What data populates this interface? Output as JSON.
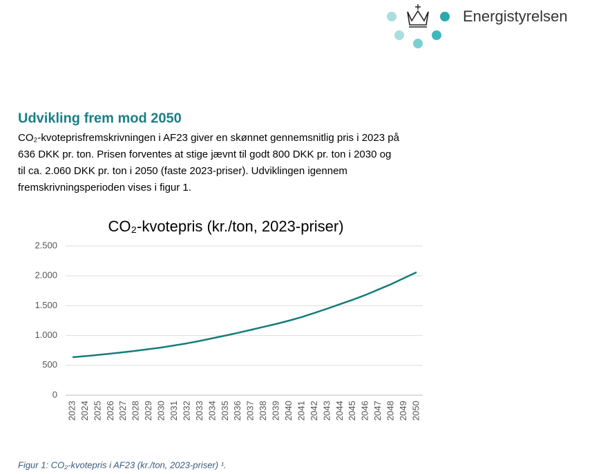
{
  "header": {
    "logo_text": "Energistyrelsen"
  },
  "section": {
    "heading": "Udvikling frem mod 2050",
    "paragraph_lines": [
      "CO₂-kvoteprisfremskrivningen i AF23 giver en skønnet gennemsnitlig pris i 2023 på",
      "636 DKK pr. ton. Prisen forventes at stige jævnt til godt 800 DKK pr. ton i 2030 og",
      "til ca. 2.060 DKK pr. ton i 2050 (faste 2023-priser). Udviklingen igennem",
      "fremskrivningsperioden vises i figur 1."
    ]
  },
  "chart_data": {
    "type": "line",
    "title": "CO₂-kvotepris (kr./ton, 2023-priser)",
    "categories": [
      "2023",
      "2024",
      "2025",
      "2026",
      "2027",
      "2028",
      "2029",
      "2030",
      "2031",
      "2032",
      "2033",
      "2034",
      "2035",
      "2036",
      "2037",
      "2038",
      "2039",
      "2040",
      "2041",
      "2042",
      "2043",
      "2044",
      "2045",
      "2046",
      "2047",
      "2048",
      "2049",
      "2050"
    ],
    "series": [
      {
        "color": "#137d7a",
        "values": [
          636,
          655,
          675,
          697,
          720,
          745,
          772,
          800,
          835,
          870,
          910,
          955,
          1000,
          1045,
          1095,
          1145,
          1195,
          1250,
          1310,
          1380,
          1450,
          1525,
          1600,
          1680,
          1770,
          1860,
          1960,
          2060
        ]
      }
    ],
    "ylim": [
      0,
      2500
    ],
    "yticks": [
      0,
      500,
      {
        "value": 1000,
        "label": "1.000"
      },
      {
        "value": 1500,
        "label": "1.500"
      },
      {
        "value": 2000,
        "label": "2.000"
      },
      {
        "value": 2500,
        "label": "2.500"
      }
    ],
    "grid": true
  },
  "caption": "Figur 1: CO₂-kvotepris i AF23 (kr./ton, 2023-priser) ¹."
}
